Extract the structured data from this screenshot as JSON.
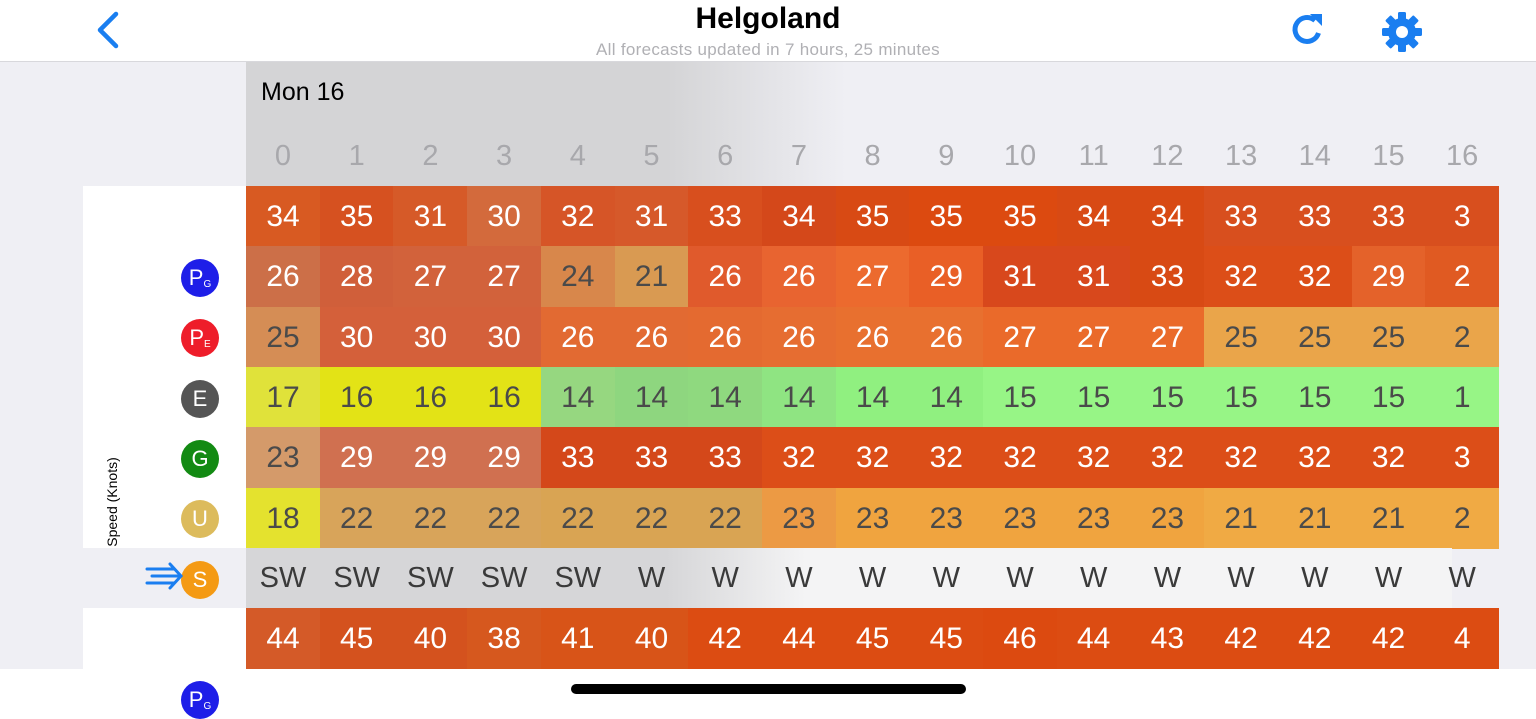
{
  "header": {
    "title": "Helgoland",
    "subtitle": "All forecasts updated in 7 hours, 25 minutes"
  },
  "accent_color": "#1a7ef0",
  "day_label": "Mon 16",
  "hours": [
    "0",
    "1",
    "2",
    "3",
    "4",
    "5",
    "6",
    "7",
    "8",
    "9",
    "10",
    "11",
    "12",
    "13",
    "14",
    "15",
    "16"
  ],
  "axis_label": "Speed (Knots)",
  "models": [
    {
      "letter": "P",
      "sub": "G",
      "color": "#1e1ee8",
      "icon": "model-pg-icon"
    },
    {
      "letter": "P",
      "sub": "E",
      "color": "#ee1d2a",
      "icon": "model-pe-icon"
    },
    {
      "letter": "E",
      "sub": "",
      "color": "#555555",
      "icon": "model-e-icon"
    },
    {
      "letter": "G",
      "sub": "",
      "color": "#138a13",
      "icon": "model-g-icon"
    },
    {
      "letter": "U",
      "sub": "",
      "color": "#dcbb5c",
      "icon": "model-u-icon"
    },
    {
      "letter": "S",
      "sub": "",
      "color": "#f49a14",
      "icon": "model-s-icon"
    }
  ],
  "speed_rows": [
    {
      "values": [
        "34",
        "35",
        "31",
        "30",
        "32",
        "31",
        "33",
        "34",
        "35",
        "35",
        "35",
        "34",
        "34",
        "33",
        "33",
        "33",
        "3"
      ],
      "colors": [
        "#d85a22",
        "#d65120",
        "#d65a28",
        "#d36a3c",
        "#d65527",
        "#d6592a",
        "#d84f1e",
        "#d4481a",
        "#d84a14",
        "#dc4a10",
        "#dc4a10",
        "#d84a14",
        "#d84a14",
        "#d84f1e",
        "#d84f1e",
        "#d84f1e",
        "#d84f1e"
      ],
      "dark": [
        false,
        false,
        false,
        false,
        false,
        false,
        false,
        false,
        false,
        false,
        false,
        false,
        false,
        false,
        false,
        false,
        false
      ]
    },
    {
      "values": [
        "26",
        "28",
        "27",
        "27",
        "24",
        "21",
        "26",
        "26",
        "27",
        "29",
        "31",
        "31",
        "33",
        "32",
        "32",
        "29",
        "2"
      ],
      "colors": [
        "#cc6f48",
        "#d05f3a",
        "#d2623b",
        "#d2623b",
        "#d8874b",
        "#d99a52",
        "#e05a2c",
        "#e86430",
        "#ec6a2e",
        "#e95f26",
        "#d8481c",
        "#d8481c",
        "#d84a14",
        "#dc4e18",
        "#dc4e18",
        "#e4622a",
        "#e05a22"
      ],
      "dark": [
        false,
        false,
        false,
        false,
        true,
        true,
        false,
        false,
        false,
        false,
        false,
        false,
        false,
        false,
        false,
        false,
        false
      ]
    },
    {
      "values": [
        "25",
        "30",
        "30",
        "30",
        "26",
        "26",
        "26",
        "26",
        "26",
        "26",
        "27",
        "27",
        "27",
        "25",
        "25",
        "25",
        "2"
      ],
      "colors": [
        "#d58d55",
        "#d4603a",
        "#d4603a",
        "#d4603a",
        "#e26a32",
        "#e26a32",
        "#e46a30",
        "#e66d31",
        "#e8702f",
        "#e8702f",
        "#ea6a2a",
        "#ea6a2a",
        "#ea6a2a",
        "#eaa54a",
        "#eaa54a",
        "#eaa54a",
        "#eaa54a"
      ],
      "dark": [
        true,
        false,
        false,
        false,
        false,
        false,
        false,
        false,
        false,
        false,
        false,
        false,
        false,
        true,
        true,
        true,
        true
      ]
    },
    {
      "values": [
        "17",
        "16",
        "16",
        "16",
        "14",
        "14",
        "14",
        "14",
        "14",
        "14",
        "15",
        "15",
        "15",
        "15",
        "15",
        "15",
        "1"
      ],
      "colors": [
        "#e0e23a",
        "#e3e316",
        "#e3e316",
        "#e3e316",
        "#96d780",
        "#8ed67f",
        "#8fd97f",
        "#8fe482",
        "#90f080",
        "#90f080",
        "#97f586",
        "#97f586",
        "#97f586",
        "#97f586",
        "#97f586",
        "#97f586",
        "#97f586"
      ],
      "dark": [
        true,
        true,
        true,
        true,
        true,
        true,
        true,
        true,
        true,
        true,
        true,
        true,
        true,
        true,
        true,
        true,
        true
      ]
    },
    {
      "values": [
        "23",
        "29",
        "29",
        "29",
        "33",
        "33",
        "33",
        "32",
        "32",
        "32",
        "32",
        "32",
        "32",
        "32",
        "32",
        "32",
        "3"
      ],
      "colors": [
        "#d49a6a",
        "#d07050",
        "#d07050",
        "#d07050",
        "#d4481a",
        "#d4481a",
        "#d4481a",
        "#dc4e18",
        "#dc4e18",
        "#dc4e18",
        "#dc4e18",
        "#dc4e18",
        "#dc4e18",
        "#dc4e18",
        "#dc4e18",
        "#dc4e18",
        "#dc4e18"
      ],
      "dark": [
        true,
        false,
        false,
        false,
        false,
        false,
        false,
        false,
        false,
        false,
        false,
        false,
        false,
        false,
        false,
        false,
        false
      ]
    },
    {
      "values": [
        "18",
        "22",
        "22",
        "22",
        "22",
        "22",
        "22",
        "23",
        "23",
        "23",
        "23",
        "23",
        "23",
        "21",
        "21",
        "21",
        "2"
      ],
      "colors": [
        "#e4e22e",
        "#d8a45a",
        "#d8a45a",
        "#d8a45a",
        "#d9a453",
        "#d9a453",
        "#d9a453",
        "#ec9a44",
        "#f0a43f",
        "#f0a43f",
        "#f0a43f",
        "#f0a43f",
        "#f0a43f",
        "#f0aa44",
        "#f0aa44",
        "#f0aa44",
        "#f0aa44"
      ],
      "dark": [
        true,
        true,
        true,
        true,
        true,
        true,
        true,
        true,
        true,
        true,
        true,
        true,
        true,
        true,
        true,
        true,
        true
      ]
    }
  ],
  "directions": [
    "SW",
    "SW",
    "SW",
    "SW",
    "SW",
    "W",
    "W",
    "W",
    "W",
    "W",
    "W",
    "W",
    "W",
    "W",
    "W",
    "W",
    "W"
  ],
  "gust_row": {
    "model_index": 0,
    "values": [
      "44",
      "45",
      "40",
      "38",
      "41",
      "40",
      "42",
      "44",
      "45",
      "45",
      "46",
      "44",
      "43",
      "42",
      "42",
      "42",
      "4"
    ],
    "colors": [
      "#d45a28",
      "#d4521e",
      "#d4521e",
      "#d6581e",
      "#d85418",
      "#d85418",
      "#dc4c12",
      "#dc4c12",
      "#dc4c12",
      "#dc4c12",
      "#dc4a10",
      "#dc4c12",
      "#dc4c12",
      "#dc4c12",
      "#dc4c12",
      "#dc4c12",
      "#dc4c12"
    ]
  }
}
